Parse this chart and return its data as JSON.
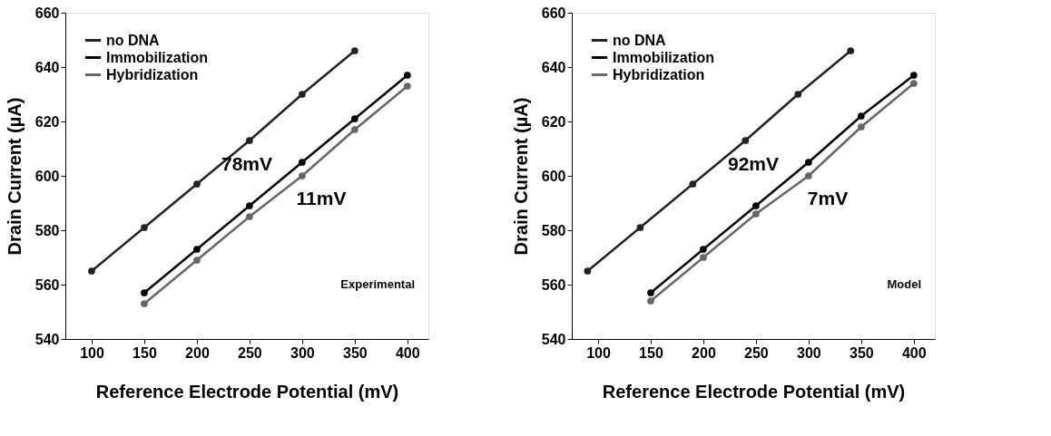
{
  "chart_data": [
    {
      "type": "line",
      "xlabel": "Reference Electrode Potential (mV)",
      "ylabel": "Drain Current (µA)",
      "xlim": [
        75,
        420
      ],
      "ylim": [
        540,
        660
      ],
      "xticks": [
        100,
        150,
        200,
        250,
        300,
        350,
        400
      ],
      "yticks": [
        540,
        560,
        580,
        600,
        620,
        640,
        660
      ],
      "grid": false,
      "legend": "top left",
      "marker": "circle",
      "line_style": "solid",
      "series": [
        {
          "name": "no DNA",
          "color": "#222222",
          "x": [
            100,
            150,
            200,
            250,
            300,
            350
          ],
          "values": [
            565,
            581,
            597,
            613,
            630,
            646
          ]
        },
        {
          "name": "Immobilization",
          "color": "#000000",
          "x": [
            150,
            200,
            250,
            300,
            350,
            400
          ],
          "values": [
            557,
            573,
            589,
            605,
            621,
            637
          ]
        },
        {
          "name": "Hybridization",
          "color": "#666666",
          "x": [
            150,
            200,
            250,
            300,
            350,
            400
          ],
          "values": [
            553,
            569,
            585,
            600,
            617,
            633
          ]
        }
      ],
      "annotations": [
        "78mV",
        "11mV",
        "Experimental"
      ]
    },
    {
      "type": "line",
      "xlabel": "Reference Electrode Potential (mV)",
      "ylabel": "Drain Current (µA)",
      "xlim": [
        75,
        420
      ],
      "ylim": [
        540,
        660
      ],
      "xticks": [
        100,
        150,
        200,
        250,
        300,
        350,
        400
      ],
      "yticks": [
        540,
        560,
        580,
        600,
        620,
        640,
        660
      ],
      "grid": false,
      "legend": "top left",
      "marker": "circle",
      "line_style": "solid",
      "series": [
        {
          "name": "no DNA",
          "color": "#222222",
          "x": [
            90,
            140,
            190,
            240,
            290,
            340
          ],
          "values": [
            565,
            581,
            597,
            613,
            630,
            646
          ]
        },
        {
          "name": "Immobilization",
          "color": "#000000",
          "x": [
            150,
            200,
            250,
            300,
            350,
            400
          ],
          "values": [
            557,
            573,
            589,
            605,
            622,
            637
          ]
        },
        {
          "name": "Hybridization",
          "color": "#666666",
          "x": [
            150,
            200,
            250,
            300,
            350,
            400
          ],
          "values": [
            554,
            570,
            586,
            600,
            618,
            634
          ]
        }
      ],
      "annotations": [
        "92mV",
        "7mV",
        "Model"
      ]
    }
  ]
}
